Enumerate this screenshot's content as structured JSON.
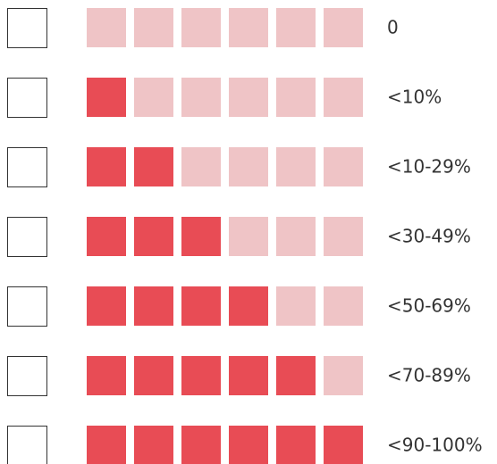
{
  "rows": [
    {
      "label": "0",
      "filled": 0
    },
    {
      "label": "<10%",
      "filled": 1
    },
    {
      "label": "<10-29%",
      "filled": 2
    },
    {
      "label": "<30-49%",
      "filled": 3
    },
    {
      "label": "<50-69%",
      "filled": 4
    },
    {
      "label": "<70-89%",
      "filled": 5
    },
    {
      "label": "<90-100%",
      "filled": 6
    }
  ]
}
